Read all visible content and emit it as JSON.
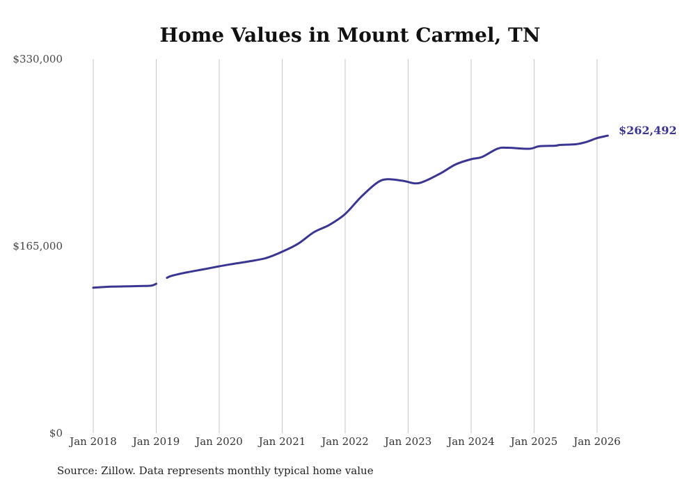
{
  "colors": {
    "line": "#3b3592",
    "grid": "#c4c4c4",
    "background": "#ffffff"
  },
  "source": "Source: Zillow. Data represents monthly typical home value",
  "chart_data": {
    "type": "line",
    "title": "Home Values in Mount Carmel, TN",
    "xlabel": "",
    "ylabel": "",
    "ylim": [
      0,
      330000
    ],
    "xlim": [
      2017.9167,
      2026.2
    ],
    "yticks": [
      {
        "value": 0,
        "label": "$0"
      },
      {
        "value": 165000,
        "label": "$165,000"
      },
      {
        "value": 330000,
        "label": "$330,000"
      }
    ],
    "xticks": [
      {
        "value": 2018,
        "label": "Jan 2018"
      },
      {
        "value": 2019,
        "label": "Jan 2019"
      },
      {
        "value": 2020,
        "label": "Jan 2020"
      },
      {
        "value": 2021,
        "label": "Jan 2021"
      },
      {
        "value": 2022,
        "label": "Jan 2022"
      },
      {
        "value": 2023,
        "label": "Jan 2023"
      },
      {
        "value": 2024,
        "label": "Jan 2024"
      },
      {
        "value": 2025,
        "label": "Jan 2025"
      },
      {
        "value": 2026,
        "label": "Jan 2026"
      }
    ],
    "grid": {
      "vertical": true,
      "horizontal": false
    },
    "end_label": "$262,492",
    "series": [
      {
        "name": "Typical home value",
        "segments": [
          {
            "x": [
              2018.0,
              2018.25,
              2018.5,
              2018.75,
              2018.92,
              2019.0
            ],
            "y": [
              128300,
              129200,
              129500,
              129800,
              130100,
              131800
            ]
          },
          {
            "x": [
              2019.17,
              2019.25,
              2019.5,
              2019.75,
              2020.0,
              2020.25,
              2020.5,
              2020.75,
              2021.0,
              2021.25,
              2021.5,
              2021.75,
              2022.0,
              2022.25,
              2022.5,
              2022.67,
              2022.92,
              2023.17,
              2023.5,
              2023.75,
              2024.0,
              2024.17,
              2024.42,
              2024.58,
              2024.92,
              2025.08,
              2025.33,
              2025.42,
              2025.67,
              2025.83,
              2026.0,
              2026.17
            ],
            "y": [
              137000,
              138900,
              142000,
              144500,
              147200,
              149600,
              151800,
              154600,
              160100,
              167000,
              177200,
              183800,
              193400,
              208300,
              220700,
              224000,
              222600,
              220600,
              228800,
              237000,
              241700,
              243600,
              251000,
              251800,
              250900,
              253100,
              253600,
              254300,
              254900,
              256900,
              260300,
              262492
            ]
          }
        ]
      }
    ]
  }
}
